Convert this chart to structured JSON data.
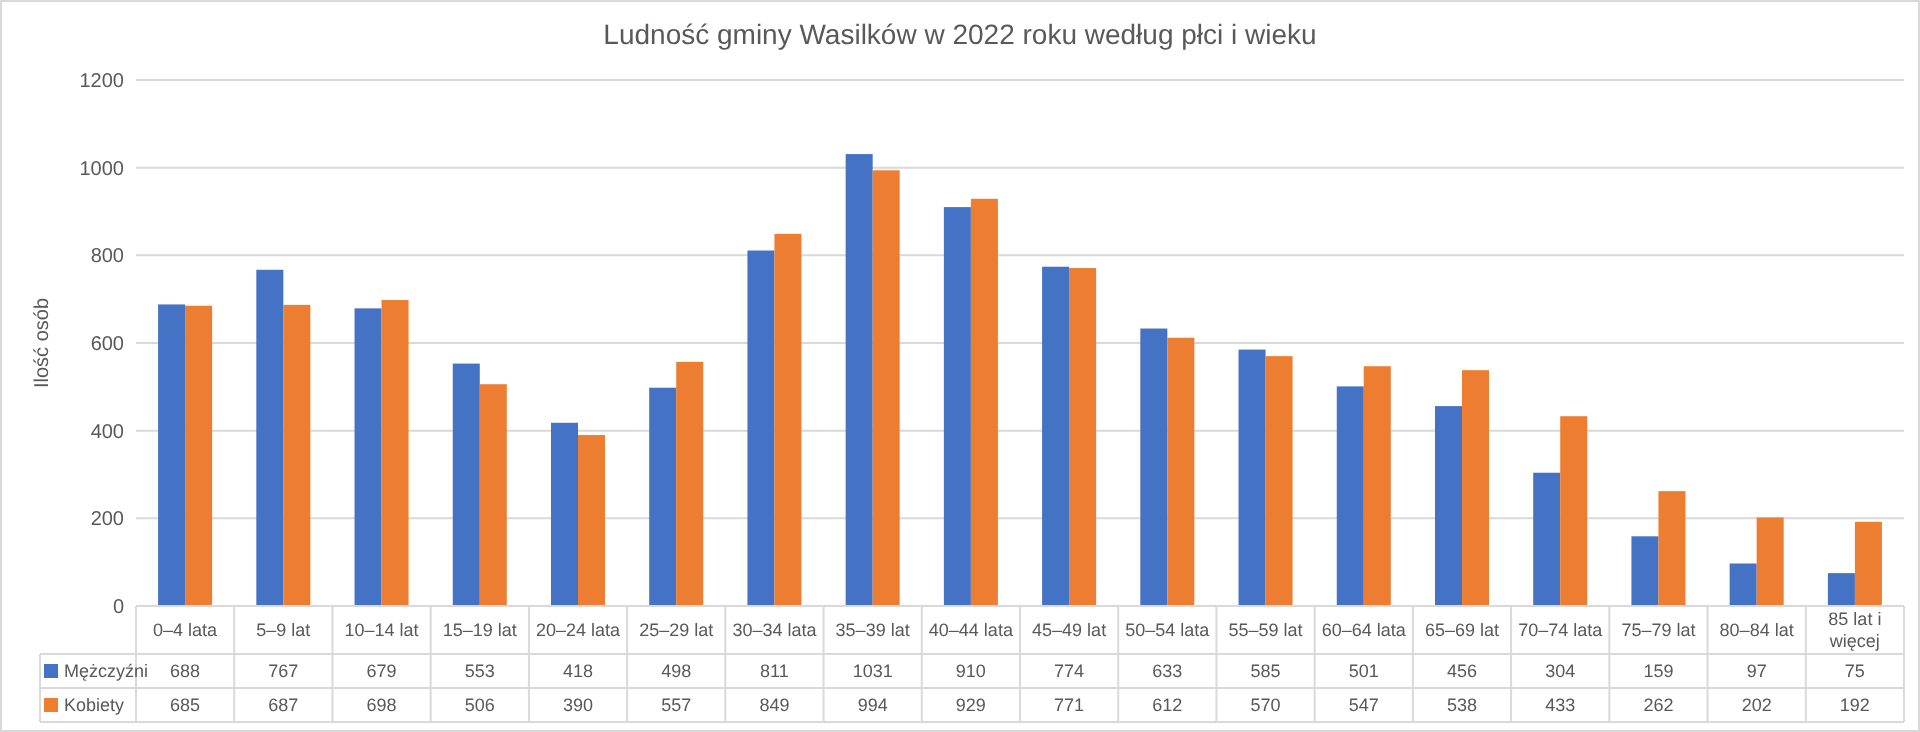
{
  "chart_data": {
    "type": "bar",
    "title": "Ludność gminy Wasilków w 2022 roku według płci i wieku",
    "ylabel": "Ilość osób",
    "categories": [
      "0–4 lata",
      "5–9 lat",
      "10–14 lat",
      "15–19 lat",
      "20–24 lata",
      "25–29 lat",
      "30–34 lata",
      "35–39 lat",
      "40–44 lata",
      "45–49 lat",
      "50–54 lata",
      "55–59 lat",
      "60–64 lata",
      "65–69 lat",
      "70–74 lata",
      "75–79 lat",
      "80–84 lat",
      "85 lat i więcej"
    ],
    "series": [
      {
        "name": "Mężczyźni",
        "color": "#4472c4",
        "values": [
          688,
          767,
          679,
          553,
          418,
          498,
          811,
          1031,
          910,
          774,
          633,
          585,
          501,
          456,
          304,
          159,
          97,
          75
        ]
      },
      {
        "name": "Kobiety",
        "color": "#ed7d31",
        "values": [
          685,
          687,
          698,
          506,
          390,
          557,
          849,
          994,
          929,
          771,
          612,
          570,
          547,
          538,
          433,
          262,
          202,
          192
        ]
      }
    ],
    "ylim": [
      0,
      1200
    ],
    "yticks": [
      0,
      200,
      400,
      600,
      800,
      1000,
      1200
    ],
    "grid": "y",
    "data_labels": true,
    "legend": "bottom"
  }
}
